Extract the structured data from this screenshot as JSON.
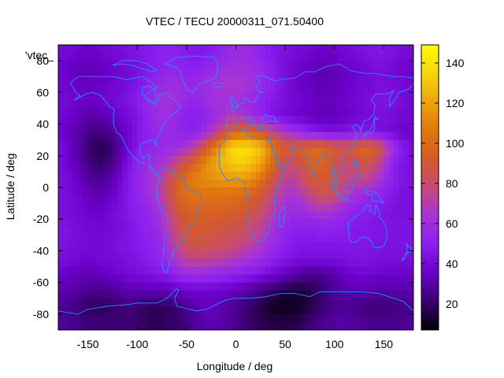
{
  "chart_data": {
    "type": "heatmap",
    "title": "VTEC / TECU 20000311_071.50400",
    "xlabel": "Longitude / deg",
    "ylabel": "Latitude / deg",
    "key_label": "'vtec_",
    "xlim": [
      -180,
      180
    ],
    "ylim": [
      -90,
      90
    ],
    "xticks": [
      -150,
      -100,
      -50,
      0,
      50,
      100,
      150
    ],
    "yticks": [
      -80,
      -60,
      -40,
      -20,
      0,
      20,
      40,
      60,
      80
    ],
    "colorbar": {
      "range": [
        7,
        149
      ],
      "ticks": [
        20,
        40,
        60,
        80,
        100,
        120,
        140
      ],
      "palette": [
        "#000000",
        "#3a0070",
        "#6a00c8",
        "#8a1ff0",
        "#a633d8",
        "#c44a78",
        "#d55a2a",
        "#e0770e",
        "#eea30e",
        "#f8d40a",
        "#ffff00"
      ]
    },
    "grid": {
      "lon": [
        -180,
        -170,
        -160,
        -150,
        -140,
        -130,
        -120,
        -110,
        -100,
        -90,
        -80,
        -70,
        -60,
        -50,
        -40,
        -30,
        -20,
        -10,
        0,
        10,
        20,
        30,
        40,
        50,
        60,
        70,
        80,
        90,
        100,
        110,
        120,
        130,
        140,
        150,
        160,
        170
      ],
      "lat_rows_north_to_south": [
        85,
        75,
        65,
        55,
        45,
        35,
        25,
        15,
        5,
        -5,
        -15,
        -25,
        -35,
        -45,
        -55,
        -65,
        -75,
        -85
      ],
      "vtec": [
        [
          40,
          38,
          36,
          36,
          38,
          40,
          42,
          44,
          46,
          48,
          50,
          50,
          48,
          46,
          46,
          48,
          52,
          56,
          58,
          56,
          52,
          48,
          44,
          42,
          40,
          38,
          36,
          36,
          38,
          40,
          42,
          44,
          46,
          44,
          42,
          40
        ],
        [
          36,
          34,
          32,
          32,
          34,
          36,
          38,
          40,
          44,
          48,
          52,
          54,
          52,
          50,
          52,
          56,
          60,
          62,
          62,
          60,
          56,
          50,
          44,
          40,
          36,
          34,
          32,
          32,
          34,
          36,
          38,
          40,
          42,
          40,
          38,
          36
        ],
        [
          38,
          36,
          34,
          34,
          36,
          38,
          40,
          44,
          48,
          54,
          58,
          60,
          58,
          56,
          58,
          62,
          64,
          66,
          66,
          62,
          58,
          52,
          46,
          40,
          36,
          34,
          32,
          32,
          34,
          36,
          38,
          40,
          42,
          42,
          40,
          38
        ],
        [
          40,
          38,
          36,
          36,
          38,
          40,
          42,
          46,
          52,
          58,
          62,
          62,
          58,
          54,
          56,
          60,
          62,
          62,
          60,
          56,
          52,
          48,
          44,
          40,
          38,
          36,
          34,
          34,
          36,
          38,
          40,
          42,
          44,
          44,
          42,
          40
        ],
        [
          38,
          36,
          32,
          30,
          32,
          34,
          38,
          42,
          48,
          56,
          60,
          58,
          52,
          48,
          50,
          56,
          62,
          68,
          66,
          60,
          52,
          46,
          42,
          38,
          36,
          34,
          32,
          32,
          34,
          36,
          38,
          40,
          42,
          42,
          40,
          38
        ],
        [
          36,
          32,
          28,
          24,
          24,
          28,
          34,
          40,
          48,
          54,
          58,
          56,
          52,
          50,
          56,
          66,
          80,
          96,
          100,
          98,
          90,
          80,
          70,
          62,
          56,
          50,
          46,
          44,
          44,
          46,
          48,
          46,
          42,
          40,
          38,
          36
        ],
        [
          40,
          34,
          26,
          18,
          16,
          22,
          32,
          42,
          50,
          54,
          56,
          58,
          62,
          70,
          84,
          102,
          120,
          136,
          140,
          138,
          130,
          112,
          96,
          92,
          96,
          100,
          102,
          96,
          90,
          92,
          98,
          100,
          90,
          70,
          52,
          44
        ],
        [
          40,
          34,
          28,
          22,
          20,
          26,
          36,
          48,
          56,
          60,
          64,
          72,
          84,
          96,
          108,
          118,
          126,
          130,
          134,
          130,
          120,
          104,
          86,
          80,
          86,
          94,
          98,
          92,
          80,
          78,
          84,
          86,
          74,
          58,
          46,
          42
        ],
        [
          42,
          38,
          32,
          28,
          28,
          32,
          40,
          50,
          58,
          64,
          72,
          86,
          100,
          108,
          112,
          114,
          116,
          118,
          118,
          114,
          104,
          90,
          78,
          72,
          78,
          88,
          92,
          90,
          82,
          76,
          76,
          74,
          64,
          54,
          46,
          44
        ],
        [
          42,
          40,
          36,
          32,
          32,
          36,
          42,
          50,
          56,
          62,
          72,
          88,
          100,
          104,
          104,
          104,
          104,
          104,
          100,
          96,
          90,
          80,
          70,
          64,
          68,
          76,
          84,
          84,
          76,
          66,
          60,
          56,
          52,
          48,
          44,
          42
        ],
        [
          42,
          40,
          38,
          36,
          36,
          40,
          44,
          48,
          52,
          56,
          66,
          80,
          92,
          96,
          96,
          96,
          96,
          94,
          92,
          88,
          82,
          72,
          64,
          58,
          58,
          62,
          66,
          64,
          60,
          54,
          50,
          48,
          46,
          44,
          42,
          42
        ],
        [
          44,
          42,
          40,
          38,
          38,
          40,
          42,
          46,
          50,
          54,
          62,
          74,
          86,
          92,
          92,
          90,
          88,
          86,
          84,
          80,
          74,
          66,
          58,
          52,
          50,
          50,
          52,
          52,
          50,
          48,
          46,
          46,
          44,
          44,
          44,
          44
        ],
        [
          44,
          42,
          40,
          40,
          40,
          42,
          44,
          46,
          48,
          52,
          58,
          70,
          82,
          88,
          88,
          86,
          84,
          82,
          78,
          74,
          68,
          60,
          54,
          48,
          46,
          46,
          46,
          46,
          46,
          46,
          46,
          46,
          44,
          44,
          44,
          44
        ],
        [
          42,
          40,
          38,
          38,
          40,
          40,
          42,
          44,
          46,
          50,
          54,
          62,
          72,
          76,
          76,
          74,
          72,
          70,
          66,
          62,
          58,
          52,
          48,
          44,
          42,
          42,
          42,
          42,
          42,
          44,
          44,
          44,
          42,
          42,
          42,
          42
        ],
        [
          36,
          34,
          32,
          32,
          34,
          36,
          38,
          40,
          42,
          44,
          46,
          50,
          56,
          58,
          58,
          56,
          54,
          52,
          50,
          48,
          44,
          40,
          36,
          32,
          28,
          26,
          26,
          28,
          32,
          36,
          38,
          38,
          36,
          36,
          36,
          36
        ],
        [
          32,
          30,
          28,
          26,
          26,
          28,
          30,
          32,
          32,
          32,
          32,
          34,
          36,
          38,
          38,
          38,
          36,
          34,
          32,
          28,
          24,
          20,
          16,
          14,
          14,
          16,
          20,
          26,
          30,
          32,
          32,
          32,
          30,
          30,
          30,
          32
        ],
        [
          26,
          24,
          20,
          18,
          18,
          20,
          22,
          22,
          20,
          18,
          18,
          20,
          24,
          28,
          32,
          34,
          32,
          28,
          24,
          20,
          16,
          12,
          10,
          10,
          12,
          16,
          20,
          24,
          26,
          26,
          24,
          22,
          22,
          22,
          24,
          26
        ],
        [
          28,
          26,
          24,
          22,
          22,
          22,
          22,
          22,
          20,
          18,
          18,
          20,
          22,
          26,
          30,
          32,
          30,
          28,
          24,
          20,
          18,
          16,
          16,
          16,
          18,
          22,
          26,
          28,
          30,
          30,
          28,
          26,
          26,
          26,
          26,
          28
        ]
      ]
    },
    "coastline_color": "#1e90ff"
  }
}
